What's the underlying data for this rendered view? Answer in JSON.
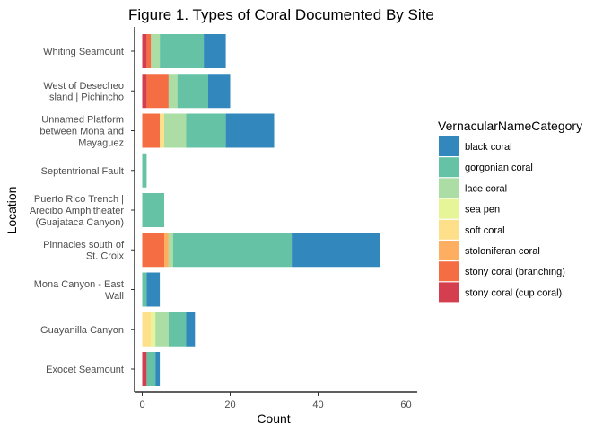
{
  "chart_data": {
    "type": "bar",
    "orientation": "horizontal",
    "stacked": true,
    "title": "Figure 1. Types of Coral Documented By Site",
    "xlabel": "Count",
    "ylabel": "Location",
    "xlim": [
      0,
      62
    ],
    "xticks": [
      "0",
      "20",
      "40",
      "60"
    ],
    "grid": false,
    "legend_title": "VernacularNameCategory",
    "legend_position": "right",
    "categories": [
      [
        "Whiting Seamount"
      ],
      [
        "West of Desecheo",
        "Island | Pichincho"
      ],
      [
        "Unnamed Platform",
        "between Mona and",
        "Mayaguez"
      ],
      [
        "Septentrional Fault"
      ],
      [
        "Puerto Rico Trench |",
        "Arecibo Amphitheater",
        "(Guajataca Canyon)"
      ],
      [
        "Pinnacles south of",
        "St. Croix"
      ],
      [
        "Mona Canyon - East",
        "Wall"
      ],
      [
        "Guayanilla Canyon"
      ],
      [
        "Exocet Seamount"
      ]
    ],
    "series": [
      {
        "name": "stony coral (cup coral)",
        "color": "#D53E4F",
        "values": [
          1,
          1,
          0,
          0,
          0,
          0,
          0,
          0,
          1
        ]
      },
      {
        "name": "stony coral (branching)",
        "color": "#F46D43",
        "values": [
          1,
          5,
          4,
          0,
          0,
          5,
          0,
          0,
          0
        ]
      },
      {
        "name": "stoloniferan coral",
        "color": "#FDAE61",
        "values": [
          0,
          0,
          0,
          0,
          0,
          1,
          0,
          0,
          0
        ]
      },
      {
        "name": "soft coral",
        "color": "#FEE08B",
        "values": [
          0,
          0,
          1,
          0,
          0,
          0,
          0,
          2,
          0
        ]
      },
      {
        "name": "sea pen",
        "color": "#E6F598",
        "values": [
          0,
          0,
          0,
          0,
          0,
          0,
          0,
          1,
          0
        ]
      },
      {
        "name": "lace coral",
        "color": "#ABDDA4",
        "values": [
          2,
          2,
          5,
          0,
          0,
          1,
          0,
          3,
          0
        ]
      },
      {
        "name": "gorgonian coral",
        "color": "#66C2A5",
        "values": [
          10,
          7,
          9,
          1,
          5,
          27,
          1,
          4,
          2
        ]
      },
      {
        "name": "black coral",
        "color": "#3288BD",
        "values": [
          5,
          5,
          11,
          0,
          0,
          20,
          3,
          2,
          1
        ]
      }
    ],
    "legend_order": [
      "black coral",
      "gorgonian coral",
      "lace coral",
      "sea pen",
      "soft coral",
      "stoloniferan coral",
      "stony coral (branching)",
      "stony coral (cup coral)"
    ]
  }
}
